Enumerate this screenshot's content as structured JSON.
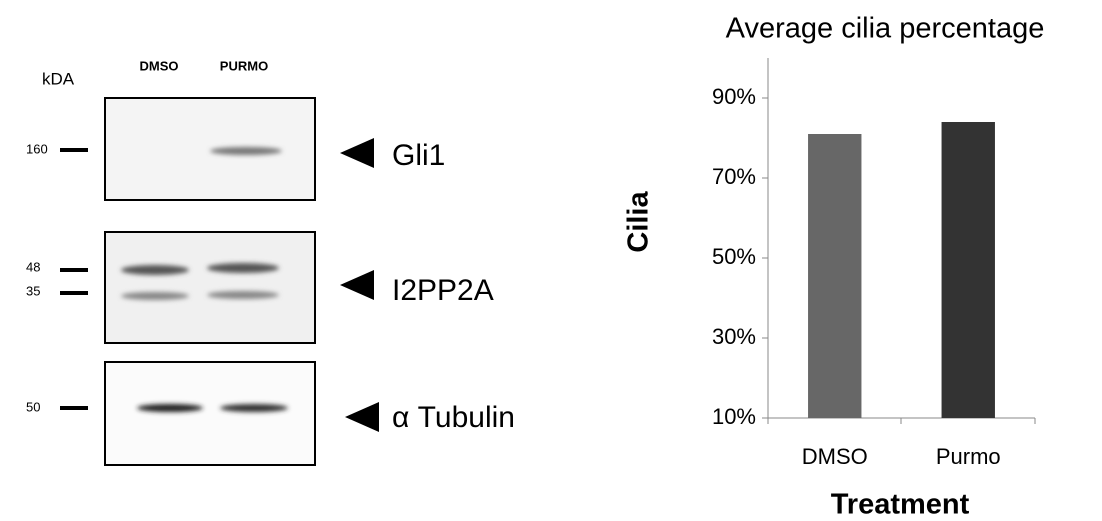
{
  "blot": {
    "kda_label": "kDA",
    "lanes": [
      "DMSO",
      "PURMO"
    ],
    "panels": [
      {
        "markers": [
          "160"
        ],
        "protein": "Gli1"
      },
      {
        "markers": [
          "48",
          "35"
        ],
        "protein": "I2PP2A"
      },
      {
        "markers": [
          "50"
        ],
        "protein": "α Tubulin"
      }
    ]
  },
  "chart_data": {
    "type": "bar",
    "title": "Average cilia percentage",
    "x_label": "Treatment",
    "y_label": "Cilia",
    "categories": [
      "DMSO",
      "Purmo"
    ],
    "values": [
      81,
      84
    ],
    "colors": [
      "#676767",
      "#333333"
    ],
    "ylim": [
      10,
      100
    ],
    "yticks": [
      {
        "value": 10,
        "label": "10%"
      },
      {
        "value": 30,
        "label": "30%"
      },
      {
        "value": 50,
        "label": "50%"
      },
      {
        "value": 70,
        "label": "70%"
      },
      {
        "value": 90,
        "label": "90%"
      }
    ],
    "grid": false
  }
}
